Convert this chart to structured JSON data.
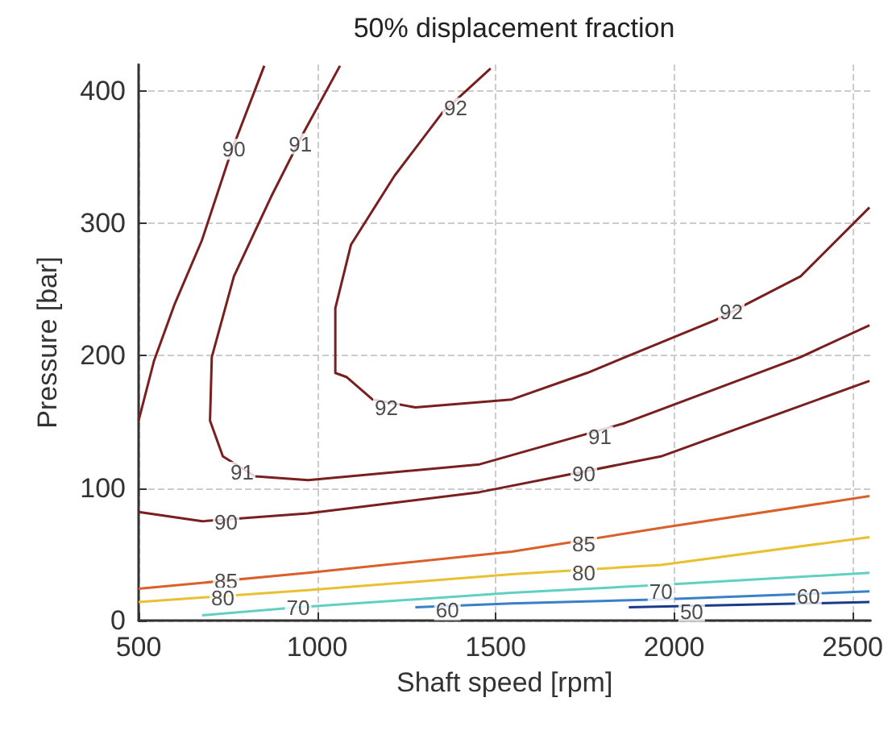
{
  "chart_data": {
    "type": "line",
    "title": "50% displacement fraction",
    "xlabel": "Shaft speed [rpm]",
    "ylabel": "Pressure [bar]",
    "xlim": [
      500,
      2550
    ],
    "xticks": [
      500,
      1000,
      1500,
      2000,
      2500
    ],
    "ylim": [
      0,
      420
    ],
    "yticks": [
      0,
      100,
      200,
      300,
      400
    ],
    "grid": true,
    "marker": "none",
    "line_style": "solid",
    "series": [
      {
        "color": "#7a1f1f",
        "x": [
          500,
          543,
          601,
          677,
          758,
          852
        ],
        "values": [
          151,
          196,
          239,
          287,
          353,
          419
        ]
      },
      {
        "color": "#7a1f1f",
        "x": [
          500,
          678,
          974,
          1455,
          1963,
          2547
        ],
        "values": [
          82,
          75,
          81,
          97,
          124,
          181
        ]
      },
      {
        "color": "#7a1f1f",
        "x": [
          1064,
          961,
          871,
          767,
          705,
          700,
          736,
          826,
          975,
          1455,
          1860,
          2354,
          2547
        ],
        "values": [
          419,
          368,
          320,
          260,
          199,
          151,
          124,
          109,
          106,
          118,
          149,
          199,
          223
        ]
      },
      {
        "color": "#7a1f1f",
        "x": [
          1486,
          1352,
          1217,
          1095,
          1051,
          1051,
          1082,
          1155,
          1275,
          1545,
          1756,
          2116,
          2354,
          2547
        ],
        "values": [
          417,
          384,
          336,
          284,
          236,
          187,
          184,
          167,
          161,
          167,
          187,
          227,
          260,
          312
        ]
      },
      {
        "color": "#d9602a",
        "x": [
          500,
          974,
          1545,
          1963,
          2547
        ],
        "values": [
          24,
          36,
          52,
          70,
          94
        ]
      },
      {
        "color": "#e8c030",
        "x": [
          500,
          974,
          1545,
          1963,
          2547
        ],
        "values": [
          14,
          23,
          35,
          42,
          63
        ]
      },
      {
        "color": "#60d0c0",
        "x": [
          678,
          947,
          1545,
          1963,
          2547
        ],
        "values": [
          4,
          10,
          21,
          27,
          36
        ]
      },
      {
        "color": "#3a80c8",
        "x": [
          1275,
          1545,
          1963,
          2547
        ],
        "values": [
          10,
          13,
          16,
          22
        ]
      },
      {
        "color": "#1a3a8a",
        "x": [
          1873,
          2547
        ],
        "values": [
          10,
          14
        ]
      }
    ],
    "annotations": [
      {
        "text": "90",
        "x": 767,
        "y": 356
      },
      {
        "text": "91",
        "x": 953,
        "y": 360
      },
      {
        "text": "92",
        "x": 1388,
        "y": 387
      },
      {
        "text": "92",
        "x": 2160,
        "y": 233
      },
      {
        "text": "92",
        "x": 1194,
        "y": 161
      },
      {
        "text": "91",
        "x": 790,
        "y": 112
      },
      {
        "text": "91",
        "x": 1792,
        "y": 139
      },
      {
        "text": "90",
        "x": 745,
        "y": 74
      },
      {
        "text": "90",
        "x": 1747,
        "y": 111
      },
      {
        "text": "85",
        "x": 745,
        "y": 30
      },
      {
        "text": "85",
        "x": 1747,
        "y": 58
      },
      {
        "text": "80",
        "x": 736,
        "y": 17
      },
      {
        "text": "80",
        "x": 1747,
        "y": 36
      },
      {
        "text": "70",
        "x": 947,
        "y": 10
      },
      {
        "text": "70",
        "x": 1963,
        "y": 22
      },
      {
        "text": "60",
        "x": 1365,
        "y": 8
      },
      {
        "text": "60",
        "x": 2376,
        "y": 18
      },
      {
        "text": "50",
        "x": 2049,
        "y": 7
      }
    ]
  }
}
